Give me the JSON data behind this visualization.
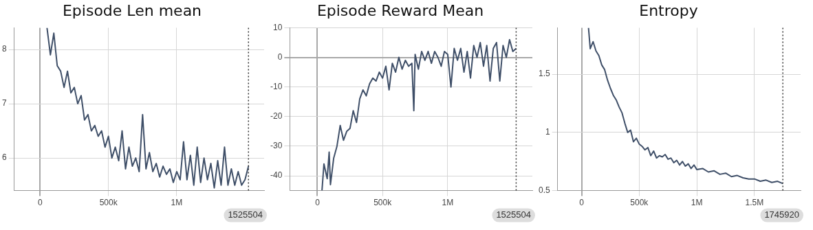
{
  "chart_data": [
    {
      "type": "line",
      "title": "Episode Len mean",
      "color": "#3f4f68",
      "x": [
        50000,
        75000,
        100000,
        125000,
        150000,
        175000,
        200000,
        225000,
        250000,
        275000,
        300000,
        325000,
        350000,
        375000,
        400000,
        425000,
        450000,
        475000,
        500000,
        525000,
        550000,
        575000,
        600000,
        625000,
        650000,
        675000,
        700000,
        725000,
        750000,
        775000,
        800000,
        825000,
        850000,
        875000,
        900000,
        925000,
        950000,
        975000,
        1000000,
        1025000,
        1050000,
        1075000,
        1100000,
        1125000,
        1150000,
        1175000,
        1200000,
        1225000,
        1250000,
        1275000,
        1300000,
        1325000,
        1350000,
        1375000,
        1400000,
        1425000,
        1450000,
        1475000,
        1500000,
        1525504
      ],
      "values": [
        8.4,
        7.9,
        8.3,
        7.7,
        7.6,
        7.3,
        7.6,
        7.2,
        7.3,
        7.0,
        7.15,
        6.7,
        6.8,
        6.5,
        6.6,
        6.4,
        6.5,
        6.2,
        6.4,
        6.0,
        6.2,
        5.95,
        6.5,
        5.8,
        6.2,
        5.85,
        6.0,
        5.75,
        6.8,
        5.8,
        6.1,
        5.75,
        5.9,
        5.65,
        5.85,
        5.7,
        5.8,
        5.55,
        5.75,
        5.6,
        6.3,
        5.6,
        6.05,
        5.5,
        6.2,
        5.55,
        6.0,
        5.6,
        5.9,
        5.45,
        5.95,
        5.5,
        6.2,
        5.5,
        5.8,
        5.5,
        5.75,
        5.5,
        5.6,
        5.85
      ],
      "xlim": [
        -190000,
        1640000
      ],
      "xticks": [
        {
          "value": 0,
          "label": "0"
        },
        {
          "value": 500000,
          "label": "500k"
        },
        {
          "value": 1000000,
          "label": "1M"
        }
      ],
      "ylim": [
        5.4,
        8.4
      ],
      "yticks": [
        6,
        7,
        8
      ],
      "grid": true,
      "ref_lines": [
        {
          "axis": "x",
          "value": 1525504,
          "label": "1525504",
          "line_style": "dotted"
        }
      ]
    },
    {
      "type": "line",
      "title": "Episode Reward Mean",
      "color": "#3f4f68",
      "x": [
        35000,
        50000,
        75000,
        90000,
        100000,
        125000,
        150000,
        175000,
        200000,
        225000,
        250000,
        275000,
        300000,
        325000,
        350000,
        375000,
        400000,
        425000,
        450000,
        475000,
        500000,
        525000,
        550000,
        575000,
        600000,
        625000,
        650000,
        675000,
        700000,
        725000,
        740000,
        750000,
        775000,
        800000,
        825000,
        850000,
        875000,
        900000,
        925000,
        950000,
        975000,
        1000000,
        1025000,
        1050000,
        1075000,
        1100000,
        1125000,
        1150000,
        1175000,
        1200000,
        1225000,
        1250000,
        1275000,
        1300000,
        1325000,
        1350000,
        1375000,
        1400000,
        1425000,
        1450000,
        1475000,
        1500000,
        1525504
      ],
      "values": [
        -45,
        -36,
        -41,
        -32,
        -43,
        -34,
        -30,
        -23,
        -28,
        -25,
        -24,
        -18,
        -22,
        -14,
        -11,
        -13,
        -9,
        -7,
        -8,
        -5,
        -7,
        -3,
        -11,
        -2,
        -5,
        0,
        -4,
        -1,
        -3,
        -2,
        -18,
        1,
        -4,
        2,
        -1,
        2,
        -2,
        2,
        0,
        -3,
        2,
        1,
        -10,
        3,
        -1,
        3,
        -5,
        2,
        -7,
        4,
        0,
        5,
        -3,
        4,
        -8,
        3,
        5,
        -8,
        4,
        0,
        6,
        2,
        3
      ],
      "xlim": [
        -212000,
        1650000
      ],
      "xticks": [
        {
          "value": 0,
          "label": "0"
        },
        {
          "value": 500000,
          "label": "500k"
        },
        {
          "value": 1000000,
          "label": "1M"
        }
      ],
      "ylim": [
        -45,
        10
      ],
      "yticks": [
        -40,
        -30,
        -20,
        -10,
        0,
        10
      ],
      "grid": true,
      "ref_lines": [
        {
          "axis": "x",
          "value": 1525504,
          "label": "1525504",
          "line_style": "dotted"
        }
      ]
    },
    {
      "type": "line",
      "title": "Entropy",
      "color": "#3f4f68",
      "x": [
        60000,
        75000,
        100000,
        125000,
        150000,
        175000,
        200000,
        225000,
        250000,
        275000,
        300000,
        325000,
        350000,
        375000,
        400000,
        425000,
        450000,
        475000,
        500000,
        525000,
        550000,
        575000,
        600000,
        625000,
        650000,
        675000,
        700000,
        725000,
        750000,
        775000,
        800000,
        825000,
        850000,
        875000,
        900000,
        925000,
        950000,
        975000,
        1000000,
        1050000,
        1100000,
        1150000,
        1200000,
        1250000,
        1300000,
        1350000,
        1400000,
        1450000,
        1500000,
        1550000,
        1600000,
        1650000,
        1700000,
        1745920
      ],
      "values": [
        1.9,
        1.72,
        1.78,
        1.7,
        1.66,
        1.58,
        1.54,
        1.45,
        1.38,
        1.32,
        1.28,
        1.22,
        1.17,
        1.08,
        1.0,
        1.02,
        0.92,
        0.95,
        0.9,
        0.88,
        0.85,
        0.87,
        0.8,
        0.84,
        0.78,
        0.8,
        0.79,
        0.81,
        0.77,
        0.78,
        0.74,
        0.76,
        0.72,
        0.75,
        0.71,
        0.73,
        0.69,
        0.72,
        0.68,
        0.69,
        0.66,
        0.67,
        0.64,
        0.65,
        0.62,
        0.63,
        0.61,
        0.6,
        0.6,
        0.58,
        0.59,
        0.57,
        0.58,
        0.56
      ],
      "xlim": [
        -208000,
        1900000
      ],
      "xticks": [
        {
          "value": 0,
          "label": "0"
        },
        {
          "value": 500000,
          "label": "500k"
        },
        {
          "value": 1000000,
          "label": "1M"
        },
        {
          "value": 1500000,
          "label": "1.5M"
        }
      ],
      "ylim": [
        0.5,
        1.9
      ],
      "yticks": [
        0.5,
        1,
        1.5
      ],
      "grid": true,
      "ref_lines": [
        {
          "axis": "x",
          "value": 1745920,
          "label": "1745920",
          "line_style": "dotted"
        }
      ]
    }
  ]
}
